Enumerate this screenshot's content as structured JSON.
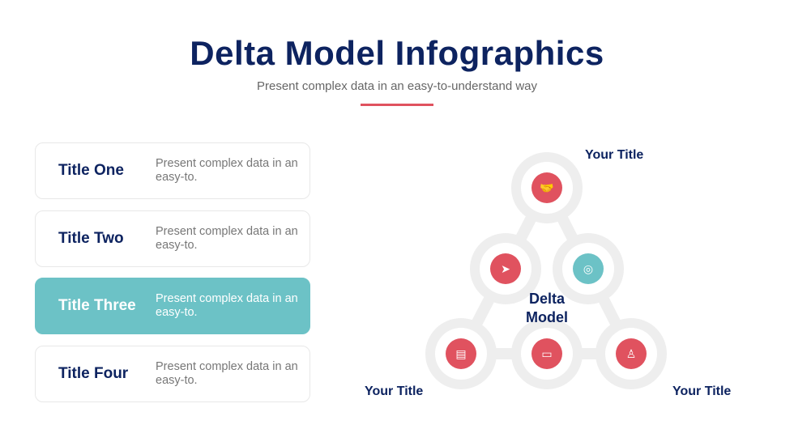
{
  "header": {
    "title": "Delta Model Infographics",
    "subtitle": "Present complex data in an easy-to-understand way"
  },
  "cards": [
    {
      "title": "Title One",
      "desc": "Present complex data in an easy-to.",
      "active": false
    },
    {
      "title": "Title Two",
      "desc": "Present complex data in an easy-to.",
      "active": false
    },
    {
      "title": "Title Three",
      "desc": "Present complex data in an easy-to.",
      "active": true
    },
    {
      "title": "Title Four",
      "desc": "Present complex data in an easy-to.",
      "active": false
    }
  ],
  "diagram": {
    "center_line1": "Delta",
    "center_line2": "Model",
    "label_top": "Your Title",
    "label_left": "Your Title",
    "label_right": "Your Title",
    "nodes": [
      {
        "icon": "handshake-icon",
        "color": "#e0525f"
      },
      {
        "icon": "paper-plane-icon",
        "color": "#e0525f"
      },
      {
        "icon": "globe-exchange-icon",
        "color": "#6cc2c6"
      },
      {
        "icon": "document-icon",
        "color": "#e0525f"
      },
      {
        "icon": "card-check-icon",
        "color": "#e0525f"
      },
      {
        "icon": "team-idea-icon",
        "color": "#e0525f"
      }
    ]
  },
  "colors": {
    "navy": "#0d2360",
    "red": "#e0525f",
    "teal": "#6cc2c6",
    "ring": "#eeeeee"
  }
}
